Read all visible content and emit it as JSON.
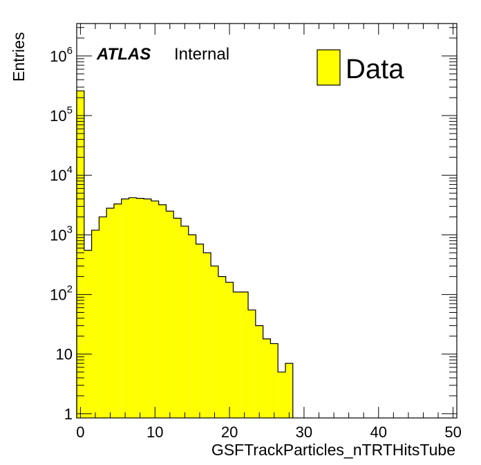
{
  "chart_data": {
    "type": "bar",
    "style": "histogram",
    "xlabel": "GSFTrackParticles_nTRTHitsTube",
    "ylabel": "Entries",
    "xlim": [
      -0.5,
      50.5
    ],
    "ylim": [
      0.85,
      3500000
    ],
    "yscale": "log",
    "bin_width": 1,
    "bins_low": [
      -0.5,
      0.5,
      1.5,
      2.5,
      3.5,
      4.5,
      5.5,
      6.5,
      7.5,
      8.5,
      9.5,
      10.5,
      11.5,
      12.5,
      13.5,
      14.5,
      15.5,
      16.5,
      17.5,
      18.5,
      19.5,
      20.5,
      21.5,
      22.5,
      23.5,
      24.5,
      25.5,
      26.5,
      27.5
    ],
    "values": [
      260000,
      550,
      1200,
      2000,
      2800,
      3300,
      4000,
      4200,
      4100,
      4000,
      3700,
      3200,
      2500,
      1900,
      1400,
      1000,
      700,
      500,
      300,
      200,
      160,
      110,
      110,
      55,
      30,
      18,
      15,
      5,
      7
    ],
    "x_ticks": [
      0,
      10,
      20,
      30,
      40,
      50
    ],
    "x_tick_labels": [
      "0",
      "10",
      "20",
      "30",
      "40",
      "50"
    ],
    "y_ticks": [
      1,
      10,
      100,
      1000,
      10000,
      100000,
      1000000
    ],
    "y_tick_labels": [
      {
        "base": "1",
        "exp": ""
      },
      {
        "base": "10",
        "exp": ""
      },
      {
        "base": "10",
        "exp": "2"
      },
      {
        "base": "10",
        "exp": "3"
      },
      {
        "base": "10",
        "exp": "4"
      },
      {
        "base": "10",
        "exp": "5"
      },
      {
        "base": "10",
        "exp": "6"
      }
    ],
    "legend": {
      "entries": [
        {
          "name": "Data"
        }
      ],
      "placement": "top-right"
    },
    "annotations": {
      "atlas": "ATLAS",
      "status": "Internal"
    },
    "fill_color": "#ffff00",
    "line_color": "#000000",
    "grid": false
  }
}
